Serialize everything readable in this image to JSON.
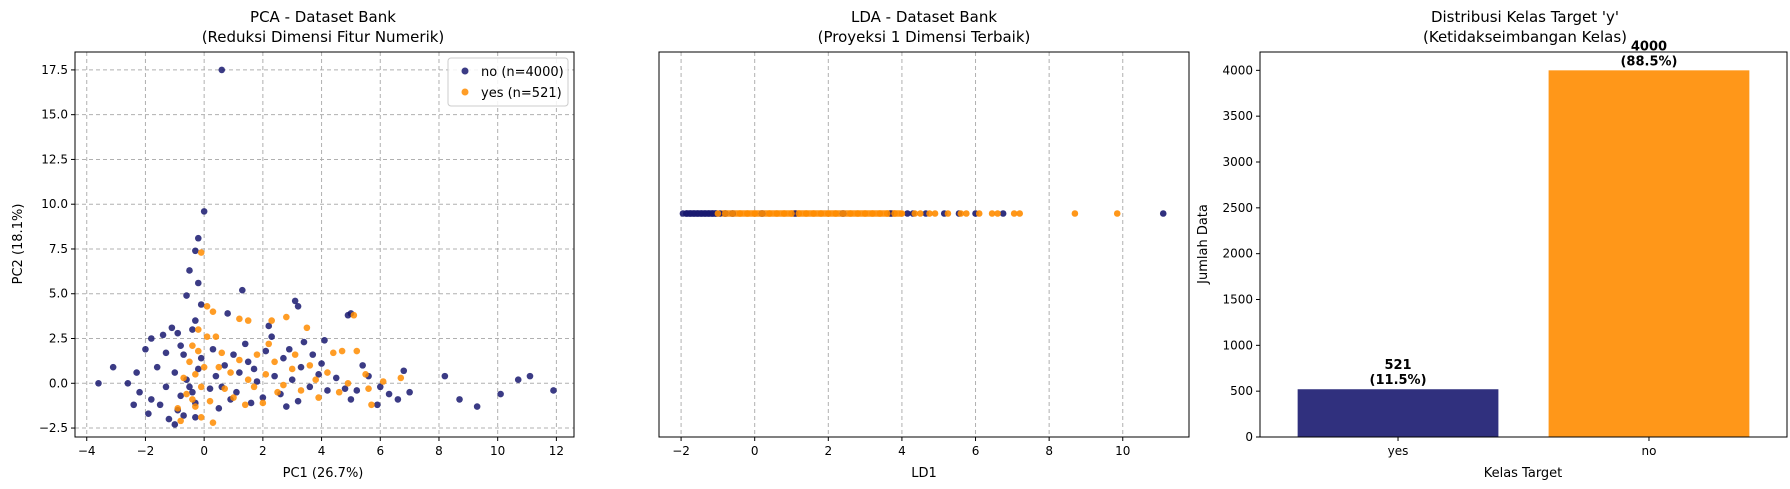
{
  "colors": {
    "no": "#191970",
    "yes": "#ff8c00"
  },
  "chart_data": [
    {
      "type": "scatter",
      "title_line1": "PCA - Dataset Bank",
      "title_line2": "(Reduksi Dimensi Fitur Numerik)",
      "xlabel": "PC1 (26.7%)",
      "ylabel": "PC2 (18.1%)",
      "xlim": [
        -4.4,
        12.6
      ],
      "ylim": [
        -3.0,
        18.5
      ],
      "xticks": [
        -4,
        -2,
        0,
        2,
        4,
        6,
        8,
        10,
        12
      ],
      "yticks": [
        -2.5,
        0.0,
        2.5,
        5.0,
        7.5,
        10.0,
        12.5,
        15.0,
        17.5
      ],
      "xtick_labels": [
        "−4",
        "−2",
        "0",
        "2",
        "4",
        "6",
        "8",
        "10",
        "12"
      ],
      "ytick_labels": [
        "−2.5",
        "0.0",
        "2.5",
        "5.0",
        "7.5",
        "10.0",
        "12.5",
        "15.0",
        "17.5"
      ],
      "grid": true,
      "legend_position": "top-right",
      "legend": [
        "no (n=4000)",
        "yes (n=521)"
      ],
      "series": [
        {
          "name": "no (n=4000)",
          "class": "no",
          "points": [
            [
              0.6,
              17.5
            ],
            [
              0.0,
              9.6
            ],
            [
              -0.2,
              8.1
            ],
            [
              -0.3,
              7.4
            ],
            [
              -0.5,
              6.3
            ],
            [
              -0.2,
              5.6
            ],
            [
              -0.6,
              4.9
            ],
            [
              -0.1,
              4.4
            ],
            [
              -0.3,
              3.5
            ],
            [
              1.3,
              5.2
            ],
            [
              3.1,
              4.6
            ],
            [
              3.2,
              4.3
            ],
            [
              2.2,
              3.2
            ],
            [
              0.8,
              3.9
            ],
            [
              4.1,
              2.4
            ],
            [
              4.9,
              3.8
            ],
            [
              5.0,
              3.9
            ],
            [
              -1.8,
              2.5
            ],
            [
              -2.0,
              1.9
            ],
            [
              -1.4,
              2.7
            ],
            [
              -1.1,
              3.1
            ],
            [
              -0.9,
              2.8
            ],
            [
              -0.7,
              1.6
            ],
            [
              -1.6,
              0.9
            ],
            [
              -2.3,
              0.6
            ],
            [
              -3.1,
              0.9
            ],
            [
              -3.6,
              0.0
            ],
            [
              -2.6,
              0.0
            ],
            [
              -2.2,
              -0.5
            ],
            [
              -1.8,
              -0.9
            ],
            [
              -1.5,
              -1.2
            ],
            [
              -2.4,
              -1.2
            ],
            [
              -1.9,
              -1.7
            ],
            [
              -1.2,
              -2.0
            ],
            [
              -0.9,
              -1.5
            ],
            [
              -0.7,
              -1.8
            ],
            [
              -1.3,
              -0.2
            ],
            [
              -1.0,
              0.6
            ],
            [
              -0.6,
              0.2
            ],
            [
              -0.4,
              -0.5
            ],
            [
              -0.3,
              -1.1
            ],
            [
              -0.2,
              0.8
            ],
            [
              -0.1,
              1.4
            ],
            [
              -0.5,
              -0.2
            ],
            [
              -0.8,
              -0.7
            ],
            [
              -0.3,
              -1.9
            ],
            [
              0.4,
              0.4
            ],
            [
              0.7,
              1.0
            ],
            [
              1.0,
              1.6
            ],
            [
              1.2,
              0.6
            ],
            [
              1.5,
              1.2
            ],
            [
              1.8,
              0.1
            ],
            [
              2.1,
              1.8
            ],
            [
              2.4,
              0.4
            ],
            [
              2.7,
              1.4
            ],
            [
              3.0,
              0.2
            ],
            [
              3.3,
              0.9
            ],
            [
              3.6,
              -0.2
            ],
            [
              3.9,
              0.5
            ],
            [
              4.2,
              -0.4
            ],
            [
              4.5,
              0.3
            ],
            [
              4.8,
              -0.3
            ],
            [
              1.1,
              -0.5
            ],
            [
              1.6,
              -1.1
            ],
            [
              2.0,
              -0.8
            ],
            [
              2.6,
              -0.6
            ],
            [
              3.2,
              -1.0
            ],
            [
              0.9,
              -0.9
            ],
            [
              5.2,
              -0.4
            ],
            [
              5.6,
              0.4
            ],
            [
              6.0,
              -0.2
            ],
            [
              6.3,
              -0.6
            ],
            [
              6.8,
              0.7
            ],
            [
              7.0,
              -0.5
            ],
            [
              6.6,
              -0.9
            ],
            [
              5.9,
              -1.2
            ],
            [
              8.2,
              0.4
            ],
            [
              8.7,
              -0.9
            ],
            [
              9.3,
              -1.3
            ],
            [
              10.1,
              -0.6
            ],
            [
              10.7,
              0.2
            ],
            [
              11.1,
              0.4
            ],
            [
              11.9,
              -0.4
            ],
            [
              0.2,
              -0.3
            ],
            [
              0.5,
              -1.4
            ],
            [
              1.4,
              2.2
            ],
            [
              2.3,
              2.6
            ],
            [
              2.9,
              1.9
            ],
            [
              3.7,
              1.6
            ],
            [
              -1.0,
              -2.3
            ],
            [
              0.3,
              1.9
            ],
            [
              -0.4,
              3.0
            ],
            [
              -0.8,
              2.1
            ],
            [
              -1.3,
              1.7
            ],
            [
              4.0,
              1.1
            ],
            [
              5.4,
              1.0
            ],
            [
              3.4,
              2.3
            ],
            [
              2.8,
              -1.3
            ],
            [
              1.7,
              0.8
            ],
            [
              0.6,
              -0.2
            ],
            [
              5.0,
              -0.9
            ]
          ]
        },
        {
          "name": "yes (n=521)",
          "class": "yes",
          "points": [
            [
              -0.1,
              7.3
            ],
            [
              0.1,
              4.3
            ],
            [
              0.3,
              4.0
            ],
            [
              -0.2,
              3.0
            ],
            [
              -0.4,
              2.1
            ],
            [
              0.1,
              2.6
            ],
            [
              0.4,
              2.6
            ],
            [
              1.2,
              3.6
            ],
            [
              1.5,
              3.5
            ],
            [
              2.3,
              3.5
            ],
            [
              2.8,
              3.7
            ],
            [
              3.5,
              3.1
            ],
            [
              5.1,
              3.8
            ],
            [
              4.4,
              1.7
            ],
            [
              4.7,
              1.8
            ],
            [
              5.2,
              1.8
            ],
            [
              -0.5,
              1.2
            ],
            [
              -0.3,
              0.5
            ],
            [
              -0.1,
              -0.2
            ],
            [
              -0.6,
              -0.6
            ],
            [
              -0.3,
              -1.3
            ],
            [
              -0.1,
              -1.9
            ],
            [
              -0.8,
              -2.1
            ],
            [
              0.0,
              0.9
            ],
            [
              -0.7,
              0.3
            ],
            [
              0.6,
              1.7
            ],
            [
              0.9,
              0.6
            ],
            [
              1.2,
              1.3
            ],
            [
              1.5,
              0.2
            ],
            [
              1.8,
              1.6
            ],
            [
              2.1,
              0.5
            ],
            [
              2.4,
              1.2
            ],
            [
              2.7,
              -0.1
            ],
            [
              3.0,
              0.8
            ],
            [
              3.3,
              -0.4
            ],
            [
              3.6,
              1.0
            ],
            [
              3.9,
              -0.8
            ],
            [
              4.2,
              0.6
            ],
            [
              1.0,
              -0.8
            ],
            [
              1.4,
              -1.2
            ],
            [
              2.0,
              -1.1
            ],
            [
              2.5,
              -0.5
            ],
            [
              0.7,
              -0.3
            ],
            [
              5.6,
              -0.3
            ],
            [
              5.7,
              -1.2
            ],
            [
              6.1,
              0.1
            ],
            [
              6.7,
              0.3
            ],
            [
              5.5,
              0.5
            ],
            [
              4.9,
              0.0
            ],
            [
              0.2,
              -1.0
            ],
            [
              1.7,
              -0.2
            ],
            [
              -0.2,
              1.8
            ],
            [
              0.5,
              0.9
            ],
            [
              3.1,
              1.6
            ],
            [
              2.2,
              2.2
            ],
            [
              -0.4,
              -0.9
            ],
            [
              -0.9,
              -1.4
            ],
            [
              0.3,
              -2.2
            ],
            [
              4.6,
              -0.5
            ],
            [
              3.8,
              0.2
            ]
          ]
        }
      ]
    },
    {
      "type": "scatter",
      "title_line1": "LDA - Dataset Bank",
      "title_line2": "(Proyeksi 1 Dimensi Terbaik)",
      "xlabel": "LD1",
      "xlim": [
        -2.6,
        11.8
      ],
      "xticks": [
        -2,
        0,
        2,
        4,
        6,
        8,
        10
      ],
      "xtick_labels": [
        "−2",
        "0",
        "2",
        "4",
        "6",
        "8",
        "10"
      ],
      "grid": true,
      "series": [
        {
          "class": "no",
          "x": [
            -1.95,
            -1.85,
            -1.75,
            -1.65,
            -1.55,
            -1.45,
            -1.35,
            -1.25,
            -1.15,
            -1.05,
            -0.95,
            -0.8,
            -0.6,
            0.2,
            1.1,
            2.4,
            3.7,
            4.15,
            4.3,
            4.65,
            5.15,
            5.55,
            6.0,
            6.75,
            11.1
          ]
        },
        {
          "class": "yes",
          "x": [
            -1.0,
            -0.8,
            -0.6,
            -0.4,
            -0.2,
            0.0,
            0.2,
            0.4,
            0.6,
            0.8,
            1.0,
            1.2,
            1.4,
            1.6,
            1.8,
            2.0,
            2.2,
            2.4,
            2.6,
            2.8,
            3.0,
            3.2,
            3.4,
            3.6,
            3.8,
            4.0,
            4.35,
            4.5,
            4.75,
            4.9,
            5.25,
            5.6,
            5.75,
            6.1,
            6.45,
            6.6,
            7.05,
            7.2,
            8.7,
            9.85
          ]
        }
      ]
    },
    {
      "type": "bar",
      "title_line1": "Distribusi Kelas Target 'y'",
      "title_line2": "(Ketidakseimbangan Kelas)",
      "xlabel": "Kelas Target",
      "ylabel": "Jumlah Data",
      "ylim": [
        0,
        4200
      ],
      "yticks": [
        0,
        500,
        1000,
        1500,
        2000,
        2500,
        3000,
        3500,
        4000
      ],
      "ytick_labels": [
        "0",
        "500",
        "1000",
        "1500",
        "2000",
        "2500",
        "3000",
        "3500",
        "4000"
      ],
      "categories": [
        "yes",
        "no"
      ],
      "values": [
        521,
        4000
      ],
      "value_labels": [
        "521",
        "4000"
      ],
      "pct_labels": [
        "(11.5%)",
        "(88.5%)"
      ],
      "bar_colors": [
        "#191970",
        "#ff8c00"
      ]
    }
  ]
}
